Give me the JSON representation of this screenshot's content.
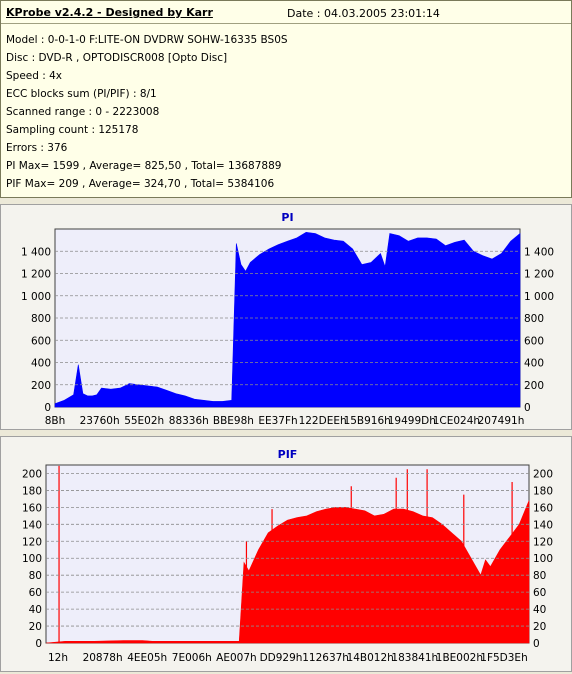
{
  "info": {
    "title": "KProbe v2.4.2 - Designed by Karr",
    "date": "Date : 04.03.2005 23:01:14",
    "lines": [
      "Model : 0-0-1-0 F:LITE-ON DVDRW SOHW-16335 BS0S",
      "Disc : DVD-R , OPTODISCR008 [Opto Disc]",
      "Speed : 4x",
      "ECC blocks sum (PI/PIF) : 8/1",
      "Scanned range : 0 - 2223008",
      "Sampling count : 125178",
      "Errors : 376",
      "PI Max= 1599 , Average= 825,50 , Total= 13687889",
      "PIF Max= 209 , Average= 324,70 , Total= 5384106"
    ]
  },
  "colors": {
    "plot_bg": "#eeeefa",
    "pi_fill": "#0000ff",
    "pif_fill": "#ff0000",
    "grid": "#8c8c8c",
    "title": "#0000c0"
  },
  "chart_data": [
    {
      "type": "area",
      "title": "PI",
      "ylim": [
        0,
        1600
      ],
      "yticks": [
        0,
        200,
        400,
        600,
        800,
        1000,
        1200,
        1400
      ],
      "ytick_labels": [
        "0",
        "200",
        "400",
        "600",
        "800",
        "1 000",
        "1 200",
        "1 400"
      ],
      "xtick_labels": [
        "8Bh",
        "23760h",
        "55E02h",
        "88336h",
        "BBE98h",
        "EE37Fh",
        "122DEEh",
        "15B916h",
        "19499Dh",
        "1CE024h",
        "207491h"
      ],
      "grid": true,
      "series": [
        {
          "x": [
            0,
            2,
            4,
            5,
            6,
            7,
            8,
            9,
            10,
            12,
            14,
            16,
            18,
            20,
            22,
            24,
            26,
            28,
            30,
            32,
            34,
            36,
            38,
            39,
            40,
            41,
            42,
            44,
            46,
            48,
            50,
            52,
            54,
            56,
            58,
            60,
            62,
            64,
            66,
            68,
            70,
            71,
            72,
            74,
            76,
            78,
            80,
            82,
            84,
            86,
            88,
            90,
            92,
            94,
            96,
            98,
            100
          ],
          "y": [
            30,
            60,
            110,
            380,
            120,
            100,
            100,
            110,
            170,
            160,
            170,
            210,
            200,
            190,
            180,
            150,
            120,
            100,
            70,
            60,
            50,
            50,
            60,
            1470,
            1280,
            1220,
            1300,
            1370,
            1420,
            1460,
            1490,
            1520,
            1570,
            1560,
            1520,
            1500,
            1490,
            1420,
            1280,
            1300,
            1380,
            1260,
            1560,
            1540,
            1490,
            1520,
            1520,
            1510,
            1450,
            1480,
            1500,
            1400,
            1360,
            1330,
            1380,
            1490,
            1560
          ]
        }
      ]
    },
    {
      "type": "area",
      "title": "PIF",
      "ylim": [
        0,
        210
      ],
      "yticks": [
        0,
        20,
        40,
        60,
        80,
        100,
        120,
        140,
        160,
        180,
        200
      ],
      "ytick_labels": [
        "0",
        "20",
        "40",
        "60",
        "80",
        "100",
        "120",
        "140",
        "160",
        "180",
        "200"
      ],
      "xtick_labels": [
        "12h",
        "20878h",
        "4EE05h",
        "7E006h",
        "AE007h",
        "DD929h",
        "112637h",
        "14B012h",
        "183841h",
        "1BE002h",
        "1F5D3Eh"
      ],
      "grid": true,
      "series": [
        {
          "x": [
            0,
            4,
            6,
            10,
            16,
            18,
            20,
            22,
            30,
            40,
            41,
            42,
            44,
            46,
            48,
            50,
            52,
            54,
            56,
            58,
            60,
            62,
            64,
            66,
            68,
            70,
            72,
            74,
            76,
            78,
            80,
            82,
            84,
            86,
            88,
            90,
            91,
            92,
            94,
            96,
            98,
            100
          ],
          "y": [
            0,
            2,
            2,
            2,
            3,
            3,
            3,
            2,
            2,
            2,
            95,
            85,
            110,
            130,
            138,
            145,
            148,
            150,
            155,
            158,
            160,
            160,
            158,
            156,
            150,
            152,
            158,
            158,
            155,
            150,
            148,
            140,
            130,
            120,
            100,
            80,
            98,
            90,
            110,
            125,
            140,
            168
          ]
        }
      ],
      "spikes": [
        {
          "x": 2.7,
          "y": 209
        },
        {
          "x": 41.5,
          "y": 120
        },
        {
          "x": 46.8,
          "y": 158
        },
        {
          "x": 63.2,
          "y": 185
        },
        {
          "x": 72.5,
          "y": 195
        },
        {
          "x": 74.8,
          "y": 205
        },
        {
          "x": 78.9,
          "y": 205
        },
        {
          "x": 86.5,
          "y": 175
        },
        {
          "x": 96.5,
          "y": 190
        }
      ]
    }
  ]
}
